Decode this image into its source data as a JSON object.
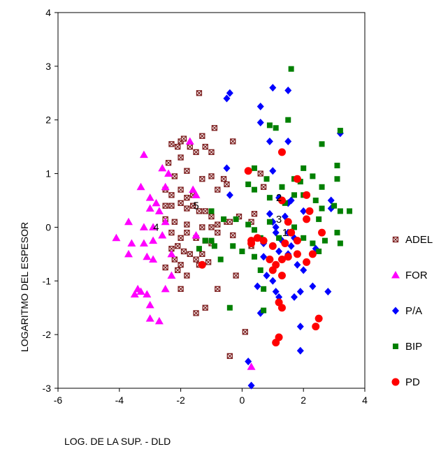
{
  "chart_data": {
    "type": "scatter",
    "xlabel": "LOG. DE LA SUP. - DLD",
    "ylabel": "LOGARITMO DEL ESPESOR",
    "xlim": [
      -6,
      4
    ],
    "ylim": [
      -3,
      4
    ],
    "x_ticks": [
      "-6",
      "-4",
      "-2",
      "0",
      "2",
      "4"
    ],
    "y_ticks": [
      "-3",
      "-2",
      "-1",
      "0",
      "1",
      "2",
      "3",
      "4"
    ],
    "grid": false,
    "legend_position": "right",
    "centroids": [
      {
        "label": "1",
        "x": 1.4,
        "y": -0.1
      },
      {
        "label": "2",
        "x": 1.2,
        "y": 0.55
      },
      {
        "label": "3",
        "x": 1.2,
        "y": 0.15
      },
      {
        "label": "4",
        "x": -2.8,
        "y": 0.0
      },
      {
        "label": "5",
        "x": -1.5,
        "y": 0.4
      }
    ],
    "series": [
      {
        "name": "ADEL",
        "marker": "boxed-x",
        "color": "#7b1c1c",
        "points": [
          [
            -1.4,
            2.5
          ],
          [
            -1.2,
            1.5
          ],
          [
            -1.0,
            1.4
          ],
          [
            -1.3,
            1.7
          ],
          [
            -0.9,
            1.85
          ],
          [
            -0.3,
            1.6
          ],
          [
            -2.3,
            1.55
          ],
          [
            -2.0,
            1.6
          ],
          [
            -1.9,
            1.65
          ],
          [
            -2.1,
            1.5
          ],
          [
            -1.7,
            1.5
          ],
          [
            -1.5,
            1.4
          ],
          [
            -2.4,
            1.2
          ],
          [
            -2.0,
            1.3
          ],
          [
            -1.8,
            1.05
          ],
          [
            -2.2,
            0.95
          ],
          [
            -0.6,
            0.9
          ],
          [
            -0.8,
            0.7
          ],
          [
            -0.5,
            0.8
          ],
          [
            -1.3,
            0.9
          ],
          [
            -1.0,
            0.95
          ],
          [
            -2.5,
            0.7
          ],
          [
            -2.3,
            0.6
          ],
          [
            -2.0,
            0.7
          ],
          [
            -1.8,
            0.55
          ],
          [
            -1.6,
            0.6
          ],
          [
            -2.5,
            0.4
          ],
          [
            -2.3,
            0.4
          ],
          [
            -2.0,
            0.45
          ],
          [
            -1.8,
            0.35
          ],
          [
            -1.6,
            0.4
          ],
          [
            -1.4,
            0.3
          ],
          [
            -1.2,
            0.3
          ],
          [
            -1.0,
            0.2
          ],
          [
            -2.5,
            0.15
          ],
          [
            -2.2,
            0.1
          ],
          [
            -1.8,
            0.05
          ],
          [
            -1.3,
            0.0
          ],
          [
            -1.0,
            0.0
          ],
          [
            -0.8,
            0.05
          ],
          [
            -0.5,
            0.1
          ],
          [
            -2.3,
            -0.1
          ],
          [
            -2.0,
            -0.2
          ],
          [
            -1.8,
            -0.1
          ],
          [
            -1.5,
            -0.2
          ],
          [
            -1.2,
            -0.25
          ],
          [
            -1.0,
            -0.3
          ],
          [
            -0.8,
            -0.1
          ],
          [
            -2.3,
            -0.4
          ],
          [
            -2.1,
            -0.35
          ],
          [
            -1.9,
            -0.45
          ],
          [
            -1.7,
            -0.5
          ],
          [
            -1.5,
            -0.6
          ],
          [
            -1.3,
            -0.5
          ],
          [
            -2.2,
            -0.6
          ],
          [
            -2.0,
            -0.7
          ],
          [
            -2.5,
            -0.75
          ],
          [
            -2.1,
            -0.8
          ],
          [
            -1.8,
            -0.9
          ],
          [
            -1.4,
            -0.7
          ],
          [
            -1.1,
            -0.65
          ],
          [
            -2.0,
            -1.15
          ],
          [
            -1.2,
            -1.5
          ],
          [
            -1.5,
            -1.6
          ],
          [
            -0.8,
            -1.15
          ],
          [
            -0.2,
            -0.9
          ],
          [
            -0.3,
            -0.15
          ],
          [
            -0.4,
            0.1
          ],
          [
            0.1,
            -1.95
          ],
          [
            -0.4,
            -2.4
          ],
          [
            0.3,
            -0.35
          ],
          [
            0.3,
            0.1
          ],
          [
            0.7,
            0.75
          ],
          [
            0.6,
            1.0
          ],
          [
            0.4,
            0.25
          ],
          [
            -0.1,
            0.2
          ]
        ]
      },
      {
        "name": "FOR",
        "marker": "triangle",
        "color": "#ff00ff",
        "points": [
          [
            -3.2,
            1.35
          ],
          [
            -2.6,
            1.1
          ],
          [
            -2.4,
            1.0
          ],
          [
            -1.7,
            1.6
          ],
          [
            -3.3,
            0.75
          ],
          [
            -3.0,
            0.55
          ],
          [
            -3.0,
            0.35
          ],
          [
            -2.5,
            0.75
          ],
          [
            -2.8,
            0.45
          ],
          [
            -2.7,
            0.3
          ],
          [
            -1.6,
            0.7
          ],
          [
            -1.5,
            0.6
          ],
          [
            -3.7,
            0.1
          ],
          [
            -3.2,
            0.0
          ],
          [
            -2.9,
            0.0
          ],
          [
            -2.5,
            0.1
          ],
          [
            -2.6,
            -0.15
          ],
          [
            -4.1,
            -0.2
          ],
          [
            -3.6,
            -0.3
          ],
          [
            -3.2,
            -0.3
          ],
          [
            -2.9,
            -0.25
          ],
          [
            -3.7,
            -0.5
          ],
          [
            -3.1,
            -0.55
          ],
          [
            -2.9,
            -0.6
          ],
          [
            -2.3,
            -0.5
          ],
          [
            -3.4,
            -1.15
          ],
          [
            -3.5,
            -1.25
          ],
          [
            -3.3,
            -1.2
          ],
          [
            -3.1,
            -1.25
          ],
          [
            -3.0,
            -1.45
          ],
          [
            -3.0,
            -1.7
          ],
          [
            -2.7,
            -1.75
          ],
          [
            -2.5,
            -1.15
          ],
          [
            -2.3,
            -0.9
          ],
          [
            -1.5,
            -0.15
          ],
          [
            0.3,
            -2.6
          ]
        ]
      },
      {
        "name": "P/A",
        "marker": "diamond",
        "color": "#0000ff",
        "points": [
          [
            -0.5,
            2.4
          ],
          [
            -0.4,
            2.5
          ],
          [
            0.6,
            2.25
          ],
          [
            0.6,
            1.95
          ],
          [
            1.0,
            2.6
          ],
          [
            1.5,
            2.55
          ],
          [
            0.9,
            1.6
          ],
          [
            1.5,
            1.6
          ],
          [
            -0.5,
            1.1
          ],
          [
            3.2,
            1.75
          ],
          [
            1.0,
            1.05
          ],
          [
            1.5,
            0.45
          ],
          [
            1.6,
            0.5
          ],
          [
            1.2,
            0.55
          ],
          [
            2.0,
            0.3
          ],
          [
            2.9,
            0.5
          ],
          [
            2.9,
            0.35
          ],
          [
            1.0,
            0.1
          ],
          [
            1.4,
            0.2
          ],
          [
            1.1,
            -0.1
          ],
          [
            1.3,
            -0.25
          ],
          [
            1.5,
            -0.1
          ],
          [
            1.7,
            -0.2
          ],
          [
            1.8,
            -0.25
          ],
          [
            1.6,
            -0.35
          ],
          [
            1.0,
            -0.35
          ],
          [
            1.2,
            -0.45
          ],
          [
            1.5,
            -0.5
          ],
          [
            0.7,
            -0.3
          ],
          [
            0.7,
            -0.55
          ],
          [
            0.8,
            -0.9
          ],
          [
            1.0,
            -1.0
          ],
          [
            1.1,
            -1.2
          ],
          [
            1.8,
            -0.7
          ],
          [
            2.0,
            -0.8
          ],
          [
            2.4,
            -0.4
          ],
          [
            0.5,
            -1.1
          ],
          [
            1.2,
            -1.3
          ],
          [
            1.7,
            -1.3
          ],
          [
            1.9,
            -1.2
          ],
          [
            0.6,
            -1.6
          ],
          [
            1.9,
            -1.85
          ],
          [
            2.3,
            -1.1
          ],
          [
            2.8,
            -1.2
          ],
          [
            0.2,
            -2.5
          ],
          [
            0.3,
            -2.95
          ],
          [
            1.9,
            -2.3
          ],
          [
            -0.4,
            0.6
          ],
          [
            0.9,
            0.25
          ],
          [
            1.1,
            0.0
          ]
        ]
      },
      {
        "name": "BIP",
        "marker": "square",
        "color": "#008000",
        "points": [
          [
            1.6,
            2.95
          ],
          [
            0.9,
            1.9
          ],
          [
            1.1,
            1.85
          ],
          [
            1.5,
            2.0
          ],
          [
            3.2,
            1.8
          ],
          [
            2.6,
            1.55
          ],
          [
            0.4,
            1.1
          ],
          [
            0.8,
            0.9
          ],
          [
            1.3,
            0.75
          ],
          [
            1.7,
            0.9
          ],
          [
            1.9,
            0.85
          ],
          [
            2.0,
            1.1
          ],
          [
            2.3,
            0.95
          ],
          [
            2.6,
            0.75
          ],
          [
            3.1,
            1.15
          ],
          [
            3.1,
            0.9
          ],
          [
            0.2,
            0.8
          ],
          [
            0.4,
            0.7
          ],
          [
            0.9,
            0.55
          ],
          [
            1.4,
            0.45
          ],
          [
            1.7,
            0.6
          ],
          [
            2.0,
            0.6
          ],
          [
            2.4,
            0.5
          ],
          [
            2.6,
            0.35
          ],
          [
            2.5,
            0.15
          ],
          [
            3.0,
            0.4
          ],
          [
            3.2,
            0.3
          ],
          [
            3.5,
            0.3
          ],
          [
            -1.0,
            0.3
          ],
          [
            -0.6,
            0.15
          ],
          [
            -0.2,
            0.15
          ],
          [
            0.2,
            0.05
          ],
          [
            0.4,
            -0.05
          ],
          [
            0.6,
            -0.2
          ],
          [
            0.9,
            0.1
          ],
          [
            1.2,
            -0.2
          ],
          [
            1.7,
            0.0
          ],
          [
            2.0,
            -0.2
          ],
          [
            2.3,
            -0.3
          ],
          [
            2.7,
            -0.25
          ],
          [
            3.1,
            -0.1
          ],
          [
            3.2,
            -0.3
          ],
          [
            -1.4,
            -0.4
          ],
          [
            -1.2,
            -0.25
          ],
          [
            -0.9,
            -0.35
          ],
          [
            -0.7,
            -0.6
          ],
          [
            -0.3,
            -0.35
          ],
          [
            0.0,
            -0.45
          ],
          [
            0.4,
            -0.55
          ],
          [
            0.6,
            -0.8
          ],
          [
            0.7,
            -1.15
          ],
          [
            0.7,
            -1.55
          ],
          [
            -0.4,
            -1.5
          ],
          [
            -1.0,
            -0.25
          ],
          [
            2.5,
            -0.45
          ]
        ]
      },
      {
        "name": "PD",
        "marker": "circle",
        "color": "#ff0000",
        "points": [
          [
            1.3,
            1.4
          ],
          [
            0.2,
            1.05
          ],
          [
            1.8,
            0.9
          ],
          [
            2.1,
            0.6
          ],
          [
            1.3,
            0.5
          ],
          [
            2.2,
            0.3
          ],
          [
            2.1,
            0.15
          ],
          [
            1.5,
            0.1
          ],
          [
            1.8,
            -0.25
          ],
          [
            2.6,
            -0.1
          ],
          [
            0.3,
            -0.25
          ],
          [
            0.5,
            -0.2
          ],
          [
            0.7,
            -0.25
          ],
          [
            1.0,
            -0.35
          ],
          [
            1.4,
            -0.3
          ],
          [
            1.6,
            -0.1
          ],
          [
            2.3,
            -0.5
          ],
          [
            0.9,
            -0.6
          ],
          [
            1.1,
            -0.7
          ],
          [
            1.3,
            -0.6
          ],
          [
            1.5,
            -0.55
          ],
          [
            1.8,
            -0.5
          ],
          [
            2.1,
            -0.65
          ],
          [
            1.0,
            -0.8
          ],
          [
            1.3,
            -0.9
          ],
          [
            -1.3,
            -0.7
          ],
          [
            1.2,
            -1.4
          ],
          [
            1.3,
            -1.5
          ],
          [
            2.4,
            -1.85
          ],
          [
            2.5,
            -1.7
          ],
          [
            1.2,
            -2.05
          ],
          [
            1.1,
            -2.15
          ],
          [
            0.3,
            -0.3
          ]
        ]
      }
    ]
  }
}
